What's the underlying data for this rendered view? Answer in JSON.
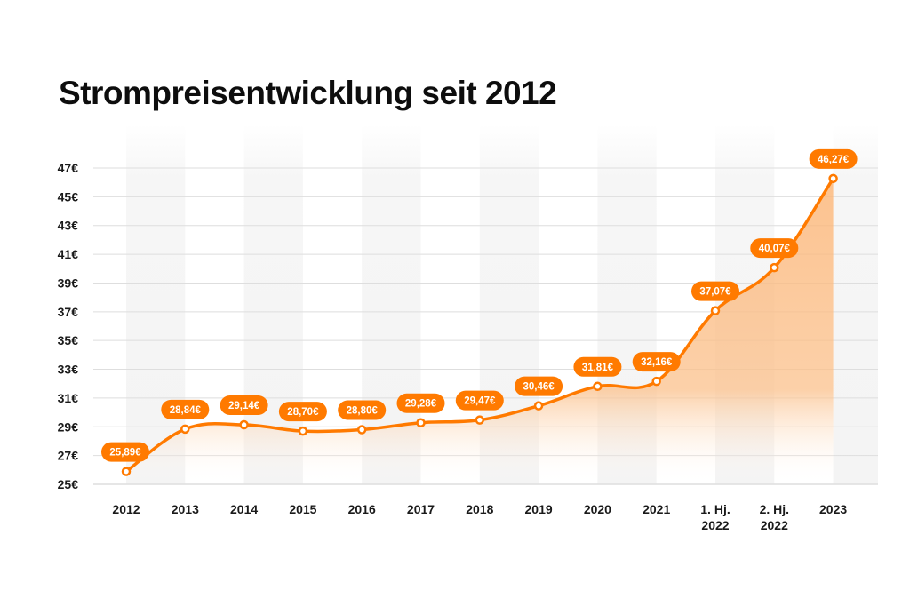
{
  "chart_data": {
    "type": "line",
    "title": "Strompreisentwicklung seit 2012",
    "xlabel": "",
    "ylabel": "",
    "categories": [
      [
        "2012"
      ],
      [
        "2013"
      ],
      [
        "2014"
      ],
      [
        "2015"
      ],
      [
        "2016"
      ],
      [
        "2017"
      ],
      [
        "2018"
      ],
      [
        "2019"
      ],
      [
        "2020"
      ],
      [
        "2021"
      ],
      [
        "1. Hj.",
        "2022"
      ],
      [
        "2. Hj.",
        "2022"
      ],
      [
        "2023"
      ]
    ],
    "values": [
      25.89,
      28.84,
      29.14,
      28.7,
      28.8,
      29.28,
      29.47,
      30.46,
      31.81,
      32.16,
      37.07,
      40.07,
      46.27
    ],
    "data_labels": [
      "25,89€",
      "28,84€",
      "29,14€",
      "28,70€",
      "28,80€",
      "29,28€",
      "29,47€",
      "30,46€",
      "31,81€",
      "32,16€",
      "37,07€",
      "40,07€",
      "46,27€"
    ],
    "yticks": [
      25,
      27,
      29,
      31,
      33,
      35,
      37,
      39,
      41,
      43,
      45,
      47
    ],
    "ytick_labels": [
      "25€",
      "27€",
      "29€",
      "31€",
      "33€",
      "35€",
      "37€",
      "39€",
      "41€",
      "43€",
      "45€",
      "47€"
    ],
    "ylim": [
      25,
      47
    ],
    "grid": true,
    "legend": "none",
    "colors": {
      "line": "#ff7a00",
      "fill": "#fbc18c",
      "grid": "#dedede",
      "band": "#f4f4f4"
    }
  }
}
